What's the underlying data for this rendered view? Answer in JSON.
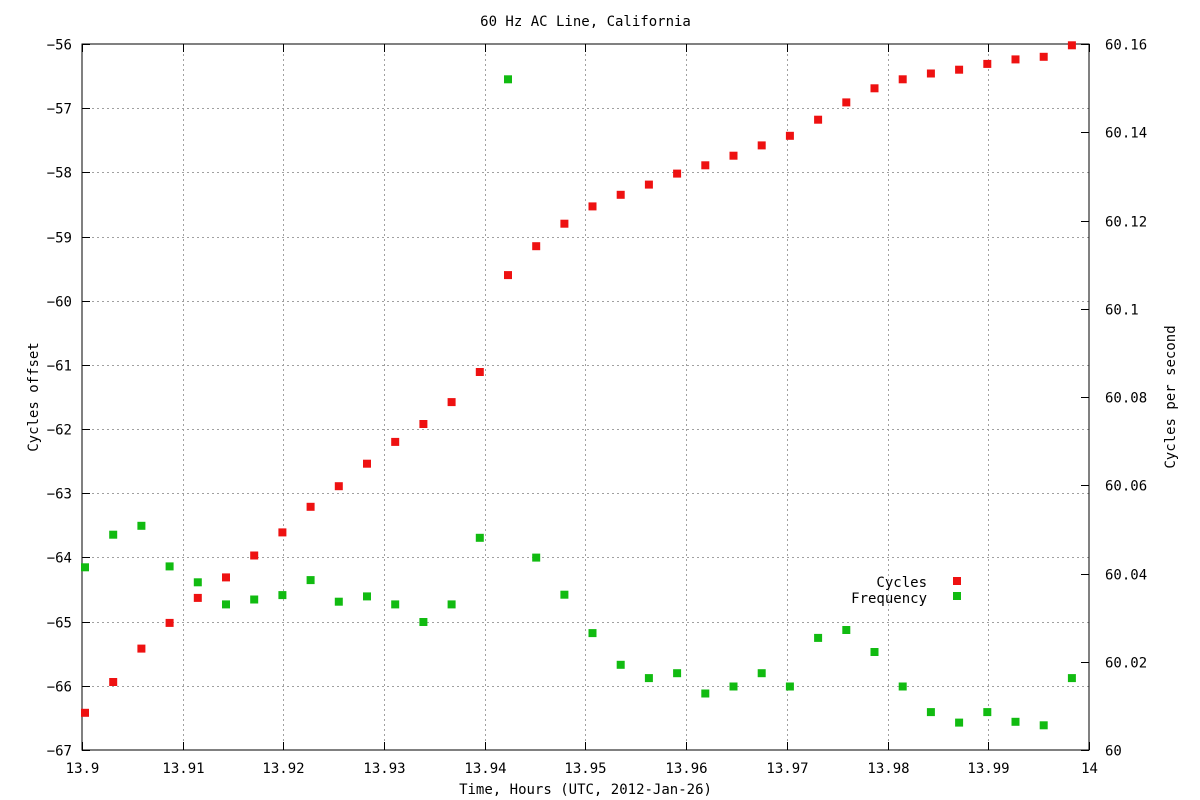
{
  "chart_data": {
    "type": "scatter",
    "title": "60 Hz AC Line, California",
    "xlabel": "Time, Hours (UTC, 2012-Jan-26)",
    "ylabel": "Cycles offset",
    "y2label": "Cycles per second",
    "xlim": [
      13.9,
      14.0
    ],
    "ylim": [
      -67,
      -56
    ],
    "y2lim": [
      60.0,
      60.16
    ],
    "x_ticks": [
      13.9,
      13.91,
      13.92,
      13.93,
      13.94,
      13.95,
      13.96,
      13.97,
      13.98,
      13.99,
      14.0
    ],
    "x_tick_labels": [
      "13.9",
      "13.91",
      "13.92",
      "13.93",
      "13.94",
      "13.95",
      "13.96",
      "13.97",
      "13.98",
      "13.99",
      "14"
    ],
    "y_ticks": [
      -56,
      -57,
      -58,
      -59,
      -60,
      -61,
      -62,
      -63,
      -64,
      -65,
      -66,
      -67
    ],
    "y_tick_labels": [
      "−56",
      "−57",
      "−58",
      "−59",
      "−60",
      "−61",
      "−62",
      "−63",
      "−64",
      "−65",
      "−66",
      "−67"
    ],
    "y2_ticks": [
      60.16,
      60.14,
      60.12,
      60.1,
      60.08,
      60.06,
      60.04,
      60.02,
      60.0
    ],
    "y2_tick_labels": [
      "60.16",
      "60.14",
      "60.12",
      "60.1",
      "60.08",
      "60.06",
      "60.04",
      "60.02",
      "60"
    ],
    "grid": true,
    "legend_position": "lower-right",
    "series": [
      {
        "name": "Cycles",
        "axis": "left",
        "color": "#ee1111",
        "points": [
          [
            13.9003,
            -66.42
          ],
          [
            13.9031,
            -65.94
          ],
          [
            13.9059,
            -65.42
          ],
          [
            13.9087,
            -65.02
          ],
          [
            13.9115,
            -64.63
          ],
          [
            13.9143,
            -64.31
          ],
          [
            13.9171,
            -63.97
          ],
          [
            13.9199,
            -63.61
          ],
          [
            13.9227,
            -63.21
          ],
          [
            13.9255,
            -62.89
          ],
          [
            13.9283,
            -62.54
          ],
          [
            13.9311,
            -62.2
          ],
          [
            13.9339,
            -61.92
          ],
          [
            13.9367,
            -61.58
          ],
          [
            13.9395,
            -61.11
          ],
          [
            13.9423,
            -59.6
          ],
          [
            13.9451,
            -59.15
          ],
          [
            13.9479,
            -58.8
          ],
          [
            13.9507,
            -58.53
          ],
          [
            13.9535,
            -58.35
          ],
          [
            13.9563,
            -58.19
          ],
          [
            13.9591,
            -58.02
          ],
          [
            13.9619,
            -57.89
          ],
          [
            13.9647,
            -57.74
          ],
          [
            13.9675,
            -57.58
          ],
          [
            13.9703,
            -57.43
          ],
          [
            13.9731,
            -57.18
          ],
          [
            13.9759,
            -56.91
          ],
          [
            13.9787,
            -56.69
          ],
          [
            13.9815,
            -56.55
          ],
          [
            13.9843,
            -56.46
          ],
          [
            13.9871,
            -56.4
          ],
          [
            13.9899,
            -56.31
          ],
          [
            13.9927,
            -56.24
          ],
          [
            13.9955,
            -56.2
          ],
          [
            13.9983,
            -56.02
          ]
        ]
      },
      {
        "name": "Frequency",
        "axis": "right",
        "color": "#11bb11",
        "points": [
          [
            13.9003,
            60.0414
          ],
          [
            13.9031,
            60.0488
          ],
          [
            13.9059,
            60.0508
          ],
          [
            13.9087,
            60.0416
          ],
          [
            13.9115,
            60.038
          ],
          [
            13.9143,
            60.033
          ],
          [
            13.9171,
            60.0341
          ],
          [
            13.9199,
            60.0351
          ],
          [
            13.9227,
            60.0385
          ],
          [
            13.9255,
            60.0336
          ],
          [
            13.9283,
            60.0348
          ],
          [
            13.9311,
            60.033
          ],
          [
            13.9339,
            60.029
          ],
          [
            13.9367,
            60.033
          ],
          [
            13.9395,
            60.0481
          ],
          [
            13.9423,
            60.152
          ],
          [
            13.9451,
            60.0436
          ],
          [
            13.9479,
            60.0352
          ],
          [
            13.9507,
            60.0265
          ],
          [
            13.9535,
            60.0193
          ],
          [
            13.9563,
            60.0163
          ],
          [
            13.9591,
            60.0174
          ],
          [
            13.9619,
            60.0128
          ],
          [
            13.9647,
            60.0144
          ],
          [
            13.9675,
            60.0174
          ],
          [
            13.9703,
            60.0144
          ],
          [
            13.9731,
            60.0254
          ],
          [
            13.9759,
            60.0272
          ],
          [
            13.9787,
            60.0222
          ],
          [
            13.9815,
            60.0144
          ],
          [
            13.9843,
            60.0086
          ],
          [
            13.9871,
            60.0062
          ],
          [
            13.9899,
            60.0086
          ],
          [
            13.9927,
            60.0064
          ],
          [
            13.9955,
            60.0056
          ],
          [
            13.9983,
            60.0163
          ]
        ]
      }
    ]
  }
}
